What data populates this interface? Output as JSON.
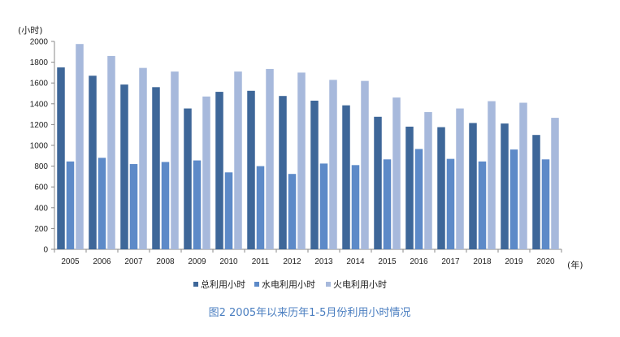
{
  "chart_data": {
    "type": "bar",
    "title": "",
    "caption": "图2  2005年以来历年1-5月份利用小时情况",
    "y_unit_label": "(小时)",
    "x_unit_label": "(年)",
    "ylim": [
      0,
      2000
    ],
    "y_ticks": [
      0,
      200,
      400,
      600,
      800,
      1000,
      1200,
      1400,
      1600,
      1800,
      2000
    ],
    "grid": false,
    "legend_position": "bottom",
    "categories": [
      "2005",
      "2006",
      "2007",
      "2008",
      "2009",
      "2010",
      "2011",
      "2012",
      "2013",
      "2014",
      "2015",
      "2016",
      "2017",
      "2018",
      "2019",
      "2020"
    ],
    "series": [
      {
        "name": "总利用小时",
        "color": "#3e6799",
        "values": [
          1750,
          1670,
          1585,
          1560,
          1355,
          1515,
          1525,
          1475,
          1430,
          1385,
          1275,
          1180,
          1175,
          1215,
          1210,
          1100
        ]
      },
      {
        "name": "水电利用小时",
        "color": "#5d8ac8",
        "values": [
          845,
          880,
          820,
          840,
          855,
          740,
          800,
          725,
          825,
          810,
          865,
          965,
          870,
          845,
          960,
          865
        ]
      },
      {
        "name": "火电利用小时",
        "color": "#a7b9dc",
        "values": [
          1975,
          1860,
          1745,
          1710,
          1470,
          1710,
          1735,
          1700,
          1630,
          1620,
          1460,
          1320,
          1355,
          1425,
          1410,
          1265
        ]
      }
    ]
  }
}
